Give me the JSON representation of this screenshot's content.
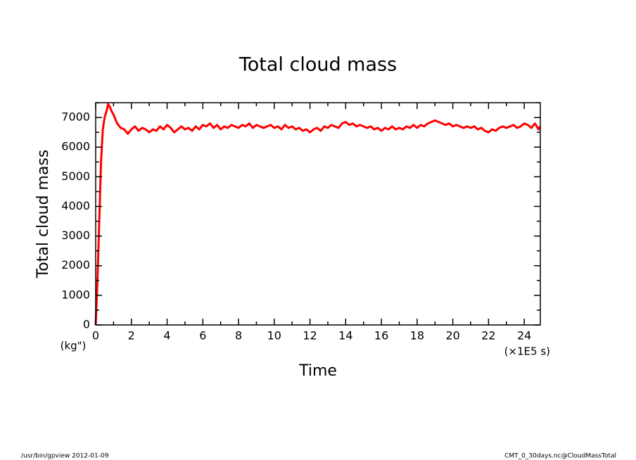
{
  "chart_data": {
    "type": "line",
    "title": "Total cloud mass",
    "x_label": "Time",
    "y_label": "Total cloud mass",
    "x_unit": "(×1E5 s)",
    "y_unit": "(kg\")",
    "footer_left": "/usr/bin/gpview  2012-01-09",
    "footer_right": "CMT_0_30days.nc@CloudMassTotal",
    "xlim": [
      0,
      24.9
    ],
    "ylim": [
      0,
      7500
    ],
    "xticks": [
      0,
      2,
      4,
      6,
      8,
      10,
      12,
      14,
      16,
      18,
      20,
      22,
      24
    ],
    "yticks": [
      0,
      1000,
      2000,
      3000,
      4000,
      5000,
      6000,
      7000
    ],
    "x_minor_ticks": [
      1,
      3,
      5,
      7,
      9,
      11,
      13,
      15,
      17,
      19,
      21,
      23
    ],
    "y_minor_ticks": [
      500,
      1500,
      2500,
      3500,
      4500,
      5500,
      6500,
      7500
    ],
    "x": [
      0,
      0.1,
      0.2,
      0.3,
      0.4,
      0.5,
      0.6,
      0.7,
      0.8,
      0.9,
      1.0,
      1.2,
      1.4,
      1.6,
      1.8,
      2.0,
      2.2,
      2.4,
      2.6,
      2.8,
      3.0,
      3.2,
      3.4,
      3.6,
      3.8,
      4.0,
      4.2,
      4.4,
      4.6,
      4.8,
      5.0,
      5.2,
      5.4,
      5.6,
      5.8,
      6.0,
      6.2,
      6.4,
      6.6,
      6.8,
      7.0,
      7.2,
      7.4,
      7.6,
      7.8,
      8.0,
      8.2,
      8.4,
      8.6,
      8.8,
      9.0,
      9.2,
      9.4,
      9.6,
      9.8,
      10.0,
      10.2,
      10.4,
      10.6,
      10.8,
      11.0,
      11.2,
      11.4,
      11.6,
      11.8,
      12.0,
      12.2,
      12.4,
      12.6,
      12.8,
      13.0,
      13.2,
      13.4,
      13.6,
      13.8,
      14.0,
      14.2,
      14.4,
      14.6,
      14.8,
      15.0,
      15.2,
      15.4,
      15.6,
      15.8,
      16.0,
      16.2,
      16.4,
      16.6,
      16.8,
      17.0,
      17.2,
      17.4,
      17.6,
      17.8,
      18.0,
      18.2,
      18.4,
      18.6,
      18.8,
      19.0,
      19.2,
      19.4,
      19.6,
      19.8,
      20.0,
      20.2,
      20.4,
      20.6,
      20.8,
      21.0,
      21.2,
      21.4,
      21.6,
      21.8,
      22.0,
      22.2,
      22.4,
      22.6,
      22.8,
      23.0,
      23.2,
      23.4,
      23.6,
      23.8,
      24.0,
      24.2,
      24.4,
      24.6,
      24.8,
      24.9
    ],
    "series": [
      {
        "name": "Total cloud mass",
        "color": "#ff0000",
        "values": [
          0,
          1500,
          3500,
          5500,
          6600,
          7000,
          7200,
          7450,
          7350,
          7200,
          7100,
          6800,
          6650,
          6600,
          6450,
          6600,
          6700,
          6550,
          6650,
          6600,
          6500,
          6600,
          6550,
          6700,
          6600,
          6750,
          6650,
          6500,
          6600,
          6700,
          6600,
          6650,
          6550,
          6700,
          6600,
          6750,
          6700,
          6800,
          6650,
          6750,
          6600,
          6700,
          6650,
          6750,
          6700,
          6650,
          6750,
          6700,
          6800,
          6650,
          6750,
          6700,
          6650,
          6700,
          6750,
          6650,
          6700,
          6600,
          6750,
          6650,
          6700,
          6600,
          6650,
          6550,
          6600,
          6500,
          6600,
          6650,
          6550,
          6700,
          6650,
          6750,
          6700,
          6650,
          6800,
          6850,
          6750,
          6800,
          6700,
          6750,
          6700,
          6650,
          6700,
          6600,
          6650,
          6550,
          6650,
          6600,
          6700,
          6600,
          6650,
          6600,
          6700,
          6650,
          6750,
          6650,
          6750,
          6700,
          6800,
          6850,
          6900,
          6850,
          6800,
          6750,
          6800,
          6700,
          6750,
          6700,
          6650,
          6700,
          6650,
          6700,
          6600,
          6650,
          6550,
          6500,
          6600,
          6550,
          6650,
          6700,
          6650,
          6700,
          6750,
          6650,
          6700,
          6800,
          6750,
          6650,
          6800,
          6600,
          6700
        ]
      }
    ]
  }
}
